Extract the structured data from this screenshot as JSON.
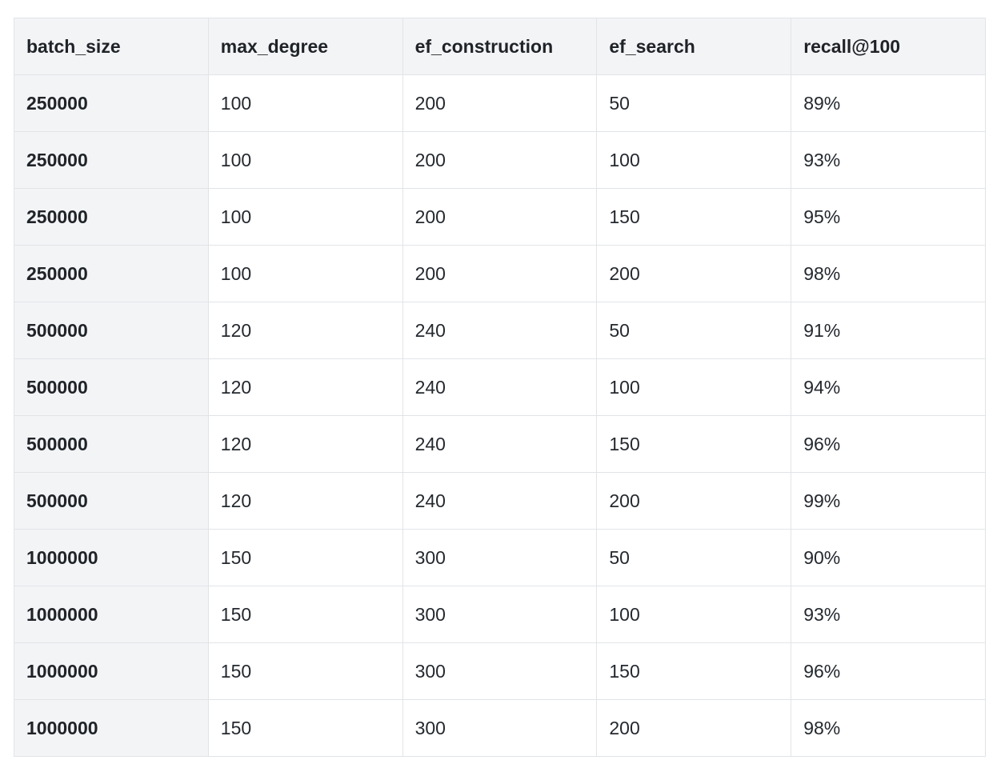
{
  "table": {
    "headers": [
      "batch_size",
      "max_degree",
      "ef_construction",
      "ef_search",
      "recall@100"
    ],
    "rows": [
      [
        "250000",
        "100",
        "200",
        "50",
        "89%"
      ],
      [
        "250000",
        "100",
        "200",
        "100",
        "93%"
      ],
      [
        "250000",
        "100",
        "200",
        "150",
        "95%"
      ],
      [
        "250000",
        "100",
        "200",
        "200",
        "98%"
      ],
      [
        "500000",
        "120",
        "240",
        "50",
        "91%"
      ],
      [
        "500000",
        "120",
        "240",
        "100",
        "94%"
      ],
      [
        "500000",
        "120",
        "240",
        "150",
        "96%"
      ],
      [
        "500000",
        "120",
        "240",
        "200",
        "99%"
      ],
      [
        "1000000",
        "150",
        "300",
        "50",
        "90%"
      ],
      [
        "1000000",
        "150",
        "300",
        "100",
        "93%"
      ],
      [
        "1000000",
        "150",
        "300",
        "150",
        "96%"
      ],
      [
        "1000000",
        "150",
        "300",
        "200",
        "98%"
      ]
    ]
  },
  "colors": {
    "header_bg": "#f3f4f6",
    "border": "#e1e4e8",
    "text": "#1f2328"
  }
}
